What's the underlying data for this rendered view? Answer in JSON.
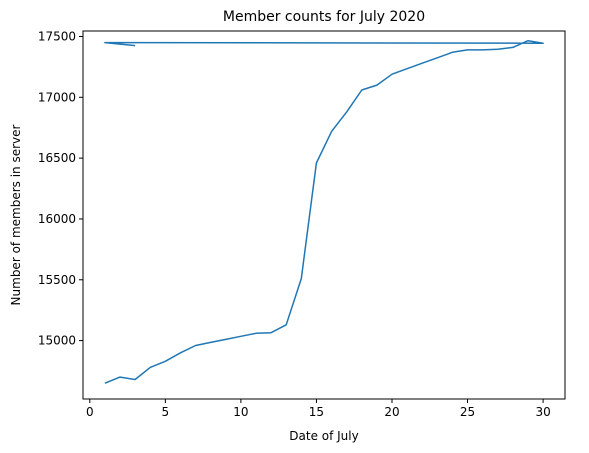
{
  "chart_data": {
    "type": "line",
    "title": "Member counts for July 2020",
    "xlabel": "Date of July",
    "ylabel": "Number of members in server",
    "xlim": [
      -0.45,
      31.45
    ],
    "ylim": [
      14520,
      17545
    ],
    "xticks": [
      0,
      5,
      10,
      15,
      20,
      25,
      30
    ],
    "yticks": [
      15000,
      15500,
      16000,
      16500,
      17000,
      17500
    ],
    "grid": false,
    "line_color": "#1f77b4",
    "series": [
      {
        "x": [
          1,
          2,
          3,
          4,
          5,
          6,
          7,
          8,
          9,
          10,
          11,
          12,
          13,
          14,
          15,
          16,
          17,
          18,
          19,
          20,
          21,
          22,
          23,
          24,
          25,
          26,
          27,
          28,
          29,
          30,
          1,
          3
        ],
        "y": [
          14650,
          14700,
          14680,
          14780,
          14830,
          14900,
          14960,
          14985,
          15010,
          15035,
          15060,
          15065,
          15130,
          15510,
          16460,
          16720,
          16880,
          17060,
          17100,
          17190,
          17235,
          17280,
          17325,
          17370,
          17390,
          17390,
          17395,
          17410,
          17465,
          17445,
          17450,
          17425
        ]
      }
    ]
  }
}
